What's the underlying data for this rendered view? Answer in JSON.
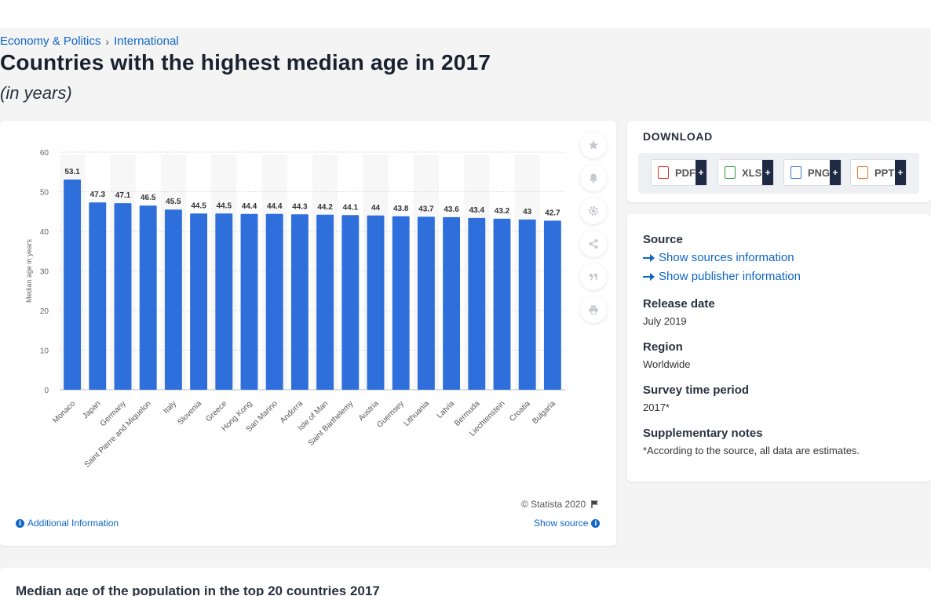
{
  "breadcrumb": {
    "items": [
      "Economy & Politics",
      "International"
    ],
    "separator": "›"
  },
  "title": "Countries with the highest median age in 2017",
  "subtitle": "(in years)",
  "chart_data": {
    "type": "bar",
    "categories": [
      "Monaco",
      "Japan",
      "Germany",
      "Saint Pierre and Miquelon",
      "Italy",
      "Slovenia",
      "Greece",
      "Hong Kong",
      "San Marino",
      "Andorra",
      "Isle of Man",
      "Saint Barthelemy",
      "Austria",
      "Guernsey",
      "Lithuania",
      "Latvia",
      "Bermuda",
      "Liechtenstein",
      "Croatia",
      "Bulgaria"
    ],
    "values": [
      53.1,
      47.3,
      47.1,
      46.5,
      45.5,
      44.5,
      44.5,
      44.4,
      44.4,
      44.3,
      44.2,
      44.1,
      44,
      43.8,
      43.7,
      43.6,
      43.4,
      43.2,
      43,
      42.7
    ],
    "value_labels": [
      "53.1",
      "47.3",
      "47.1",
      "46.5",
      "45.5",
      "44.5",
      "44.5",
      "44.4",
      "44.4",
      "44.3",
      "44.2",
      "44.1",
      "44",
      "43.8",
      "43.7",
      "43.6",
      "43.4",
      "43.2",
      "43",
      "42.7"
    ],
    "ylabel": "Median age in years",
    "ylim": [
      0,
      60
    ],
    "yticks": [
      "0",
      "10",
      "20",
      "30",
      "40",
      "50",
      "60"
    ],
    "bar_color": "#2f6fdc",
    "grid": true
  },
  "chart_footer": {
    "copyright": "© Statista 2020",
    "additional_info": "Additional Information",
    "show_source": "Show source"
  },
  "tools": [
    "star-icon",
    "bell-icon",
    "gear-icon",
    "share-icon",
    "quote-icon",
    "print-icon"
  ],
  "download": {
    "title": "DOWNLOAD",
    "formats": [
      {
        "label": "PDF",
        "color": "#d9352b"
      },
      {
        "label": "XLS",
        "color": "#2e9b3d"
      },
      {
        "label": "PNG",
        "color": "#3a7bd5"
      },
      {
        "label": "PPT",
        "color": "#e8762c"
      }
    ],
    "plus": "+"
  },
  "meta": {
    "source_label": "Source",
    "show_sources": "Show sources information",
    "show_publisher": "Show publisher information",
    "release_label": "Release date",
    "release_value": "July 2019",
    "region_label": "Region",
    "region_value": "Worldwide",
    "period_label": "Survey time period",
    "period_value": "2017*",
    "notes_label": "Supplementary notes",
    "notes_value": "*According to the source, all data are estimates."
  },
  "bottom": {
    "title": "Median age of the population in the top 20 countries 2017"
  }
}
